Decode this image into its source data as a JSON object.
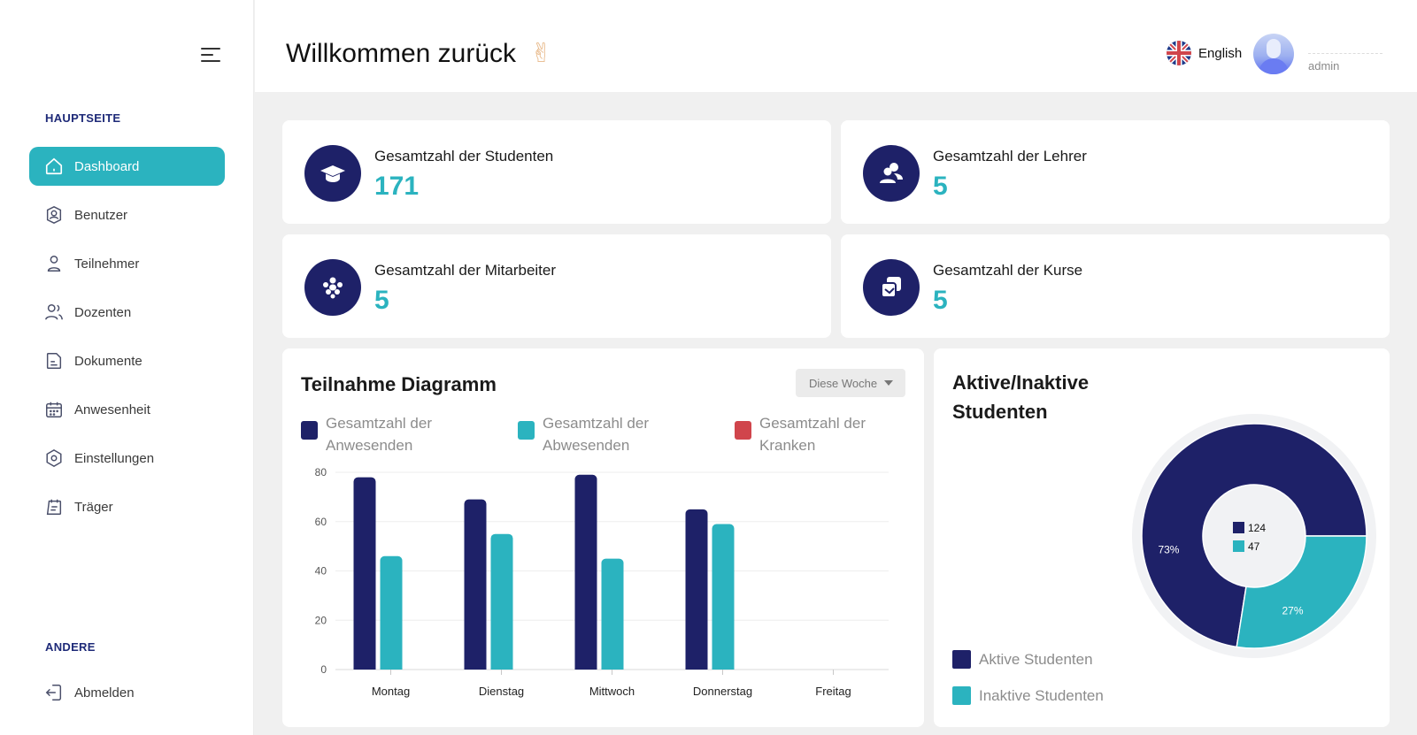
{
  "sidebar": {
    "section_main": "HAUPTSEITE",
    "section_other": "ANDERE",
    "items": [
      {
        "label": "Dashboard",
        "icon": "home-icon"
      },
      {
        "label": "Benutzer",
        "icon": "user-shield-icon"
      },
      {
        "label": "Teilnehmer",
        "icon": "person-icon"
      },
      {
        "label": "Dozenten",
        "icon": "people-icon"
      },
      {
        "label": "Dokumente",
        "icon": "document-icon"
      },
      {
        "label": "Anwesenheit",
        "icon": "calendar-icon"
      },
      {
        "label": "Einstellungen",
        "icon": "settings-icon"
      },
      {
        "label": "Träger",
        "icon": "clipboard-icon"
      }
    ],
    "logout": {
      "label": "Abmelden",
      "icon": "logout-icon"
    }
  },
  "header": {
    "welcome": "Willkommen zurück",
    "hand": "✌",
    "language": "English",
    "user_role": "admin"
  },
  "stats": [
    {
      "label": "Gesamtzahl der Studenten",
      "value": "171",
      "icon": "graduation-cap-icon"
    },
    {
      "label": "Gesamtzahl der Lehrer",
      "value": "5",
      "icon": "users-icon"
    },
    {
      "label": "Gesamtzahl der Mitarbeiter",
      "value": "5",
      "icon": "team-icon"
    },
    {
      "label": "Gesamtzahl der Kurse",
      "value": "5",
      "icon": "copy-icon"
    }
  ],
  "attendance": {
    "title": "Teilnahme Diagramm",
    "period": "Diese Woche"
  },
  "students": {
    "title": "Aktive/Inaktive Studenten"
  },
  "colors": {
    "primary": "#1e2168",
    "accent": "#2bb3bf",
    "sick": "#d0454c"
  },
  "chart_data": [
    {
      "type": "bar",
      "categories": [
        "Montag",
        "Dienstag",
        "Mittwoch",
        "Donnerstag",
        "Freitag"
      ],
      "series": [
        {
          "name": "Gesamtzahl der Anwesenden",
          "values": [
            78,
            69,
            79,
            65,
            0
          ],
          "color": "#1e2168"
        },
        {
          "name": "Gesamtzahl der Abwesenden",
          "values": [
            46,
            55,
            45,
            59,
            0
          ],
          "color": "#2bb3bf"
        },
        {
          "name": "Gesamtzahl der Kranken",
          "values": [
            0,
            0,
            0,
            0,
            0
          ],
          "color": "#d0454c"
        }
      ],
      "yticks": [
        0,
        20,
        40,
        60,
        80
      ],
      "ylim": [
        0,
        80
      ],
      "grid": true,
      "legend": "top"
    },
    {
      "type": "pie",
      "donut": true,
      "categories": [
        "Aktive Studenten",
        "Inaktive Studenten"
      ],
      "values": [
        124,
        47
      ],
      "percent_labels": [
        "73%",
        "27%"
      ],
      "colors": [
        "#1e2168",
        "#2bb3bf"
      ],
      "legend": "bottom-left"
    }
  ]
}
